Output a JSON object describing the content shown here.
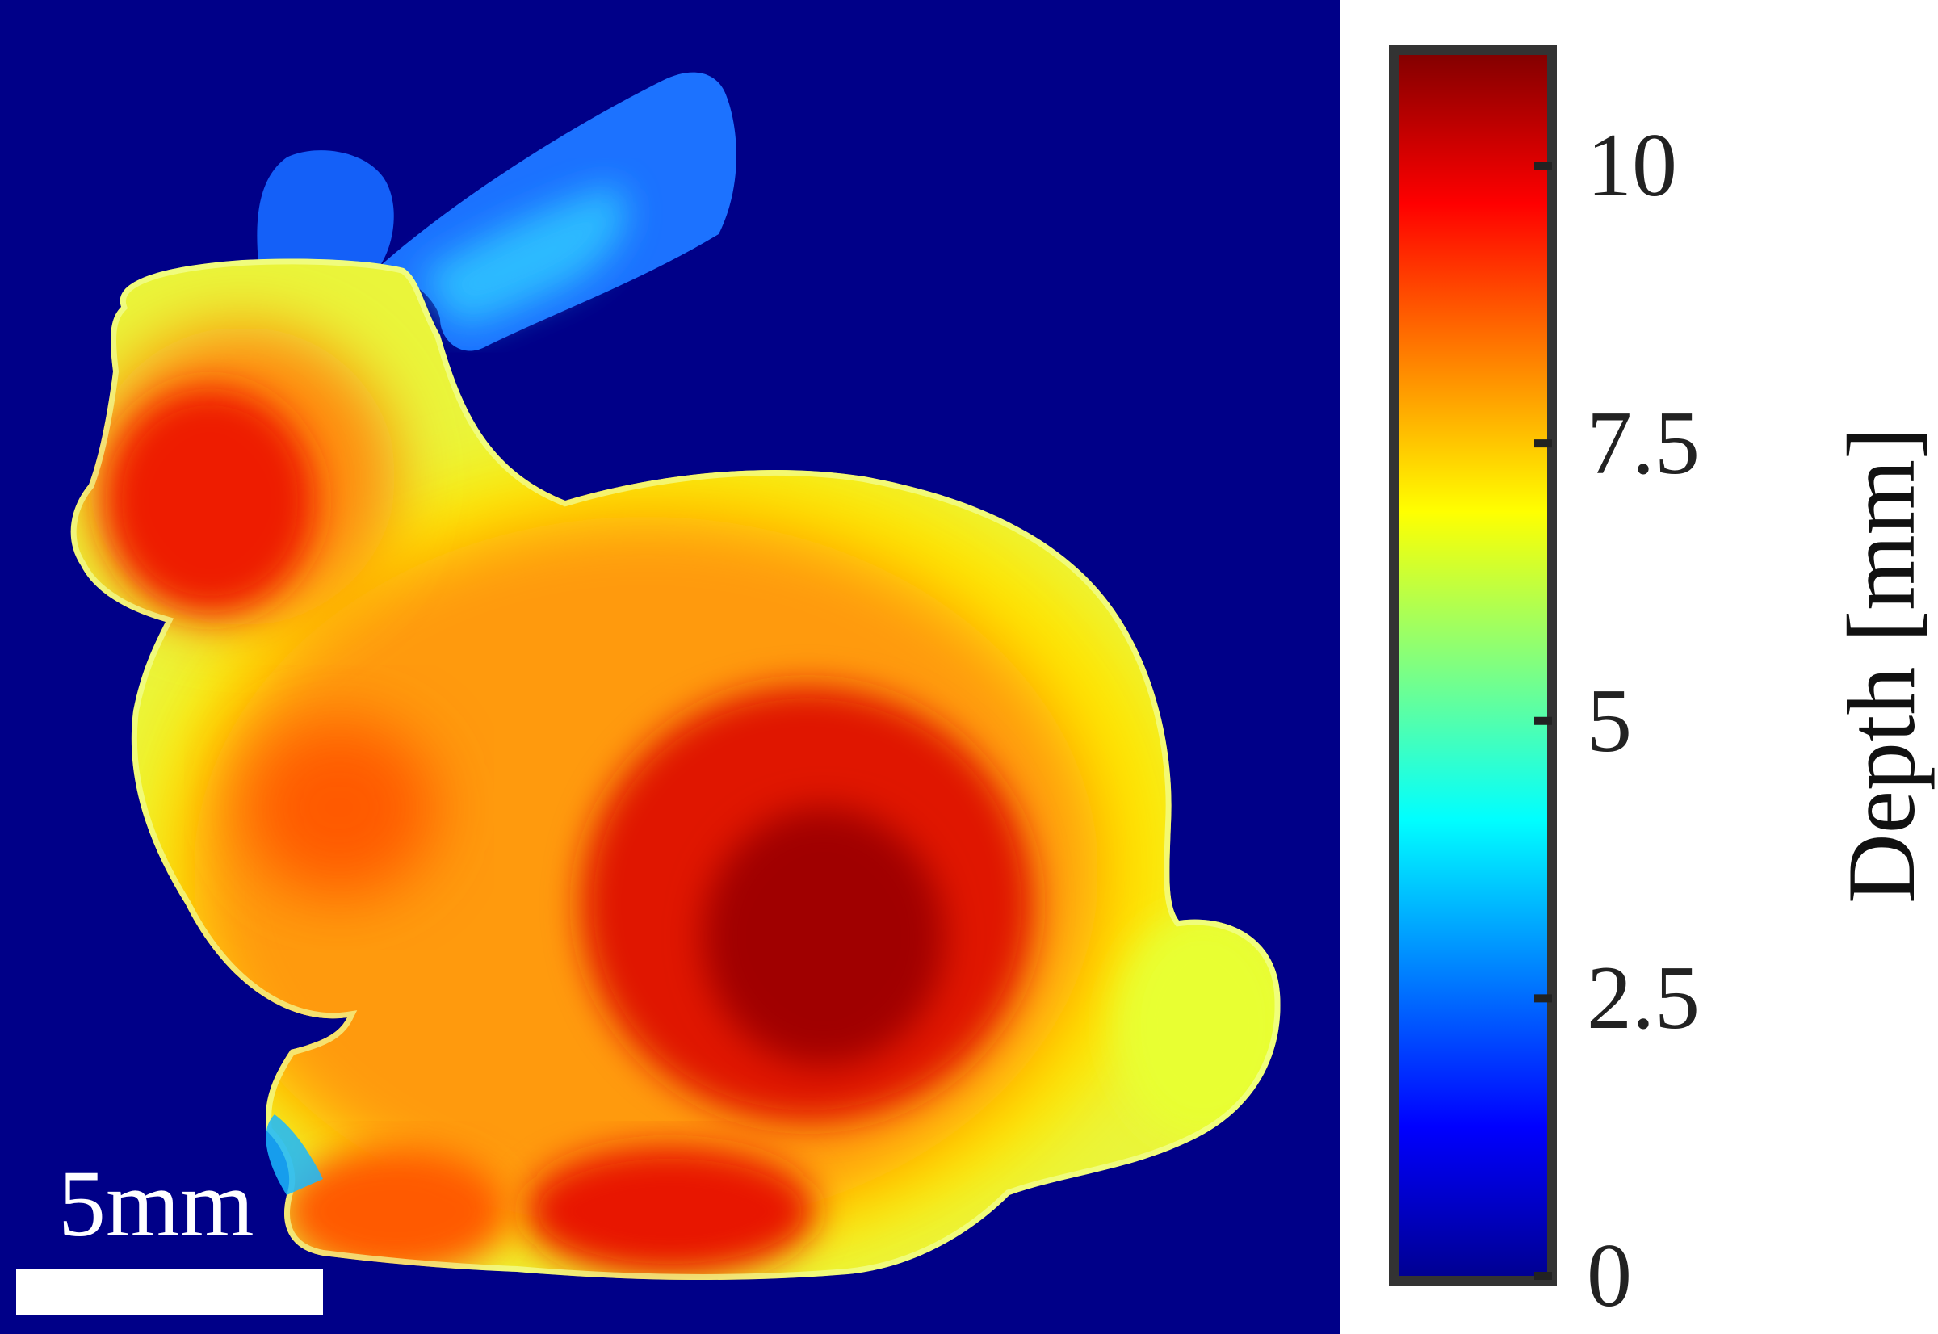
{
  "image": {
    "subject": "bunny",
    "background_color": "#000088"
  },
  "scale_bar": {
    "label": "5mm",
    "color": "#ffffff"
  },
  "colorbar": {
    "label": "Depth [mm]",
    "colormap": "jet",
    "min": 0,
    "max": 11,
    "ticks": [
      {
        "value": 0,
        "label": "0"
      },
      {
        "value": 2.5,
        "label": "2.5"
      },
      {
        "value": 5,
        "label": "5"
      },
      {
        "value": 7.5,
        "label": "7.5"
      },
      {
        "value": 10,
        "label": "10"
      }
    ],
    "colors": [
      "#00008f",
      "#0000ff",
      "#0080ff",
      "#00ffff",
      "#80ff80",
      "#ffff00",
      "#ff8000",
      "#ff0000",
      "#800000"
    ]
  }
}
